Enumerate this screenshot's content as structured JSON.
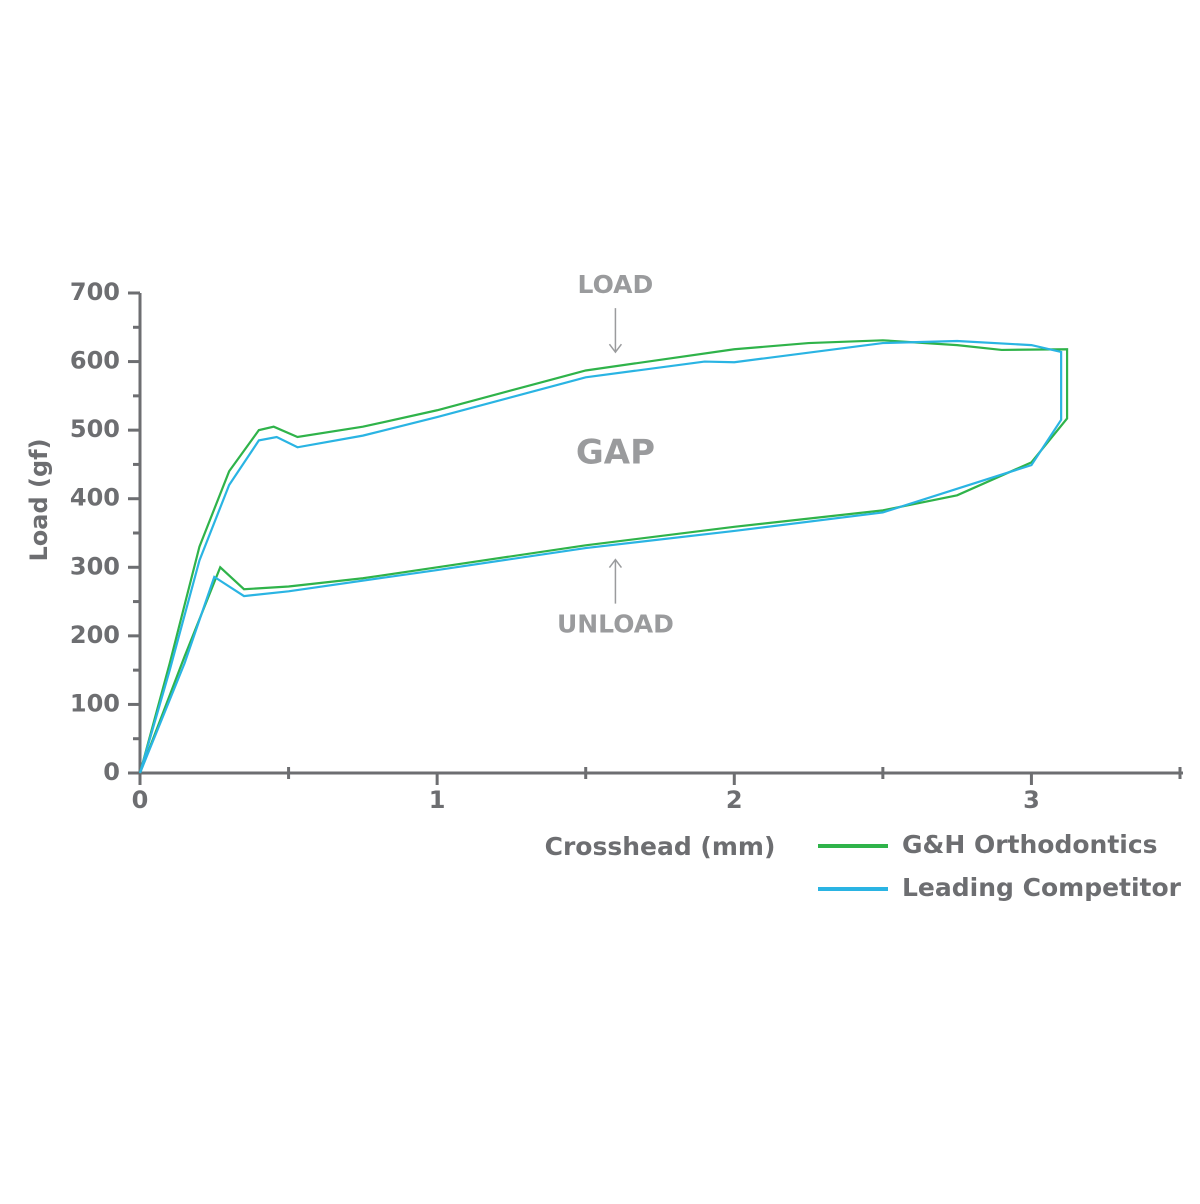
{
  "chart_data": {
    "type": "line",
    "x_label": "Crosshead (mm)",
    "y_label": "Load (gf)",
    "xlim": [
      0,
      3.5
    ],
    "ylim": [
      0,
      700
    ],
    "xticks": [
      0,
      1,
      2,
      3
    ],
    "xminor_ticks": [
      0.5,
      1.5,
      2.5,
      3.5
    ],
    "yticks": [
      0,
      100,
      200,
      300,
      400,
      500,
      600,
      700
    ],
    "yminor_ticks": [
      50,
      150,
      250,
      350,
      450,
      550,
      650
    ],
    "annotations": [
      {
        "text": "LOAD",
        "x": 1.6,
        "y": 710,
        "arrow": "down"
      },
      {
        "text": "GAP",
        "x": 1.6,
        "y": 465
      },
      {
        "text": "UNLOAD",
        "x": 1.6,
        "y": 215,
        "arrow": "up"
      }
    ],
    "series": [
      {
        "name": "G&H Orthodontics",
        "color": "#2fb34a",
        "x": [
          0,
          0.1,
          0.2,
          0.3,
          0.4,
          0.45,
          0.53,
          0.75,
          1.0,
          1.5,
          2.0,
          2.25,
          2.5,
          2.75,
          2.9,
          3.12,
          3.12,
          3.0,
          2.75,
          2.5,
          2.0,
          1.5,
          1.0,
          0.75,
          0.5,
          0.35,
          0.27,
          0.15,
          0
        ],
        "values": [
          0,
          160,
          330,
          440,
          500,
          505,
          490,
          505,
          529,
          587,
          618,
          627,
          631,
          624,
          617,
          618,
          517,
          453,
          405,
          383,
          359,
          332,
          300,
          284,
          272,
          268,
          300,
          170,
          0
        ]
      },
      {
        "name": "Leading Competitor",
        "color": "#2ab4e3",
        "x": [
          0,
          0.1,
          0.2,
          0.3,
          0.4,
          0.46,
          0.53,
          0.75,
          1.0,
          1.5,
          1.9,
          2.0,
          2.5,
          2.75,
          3.0,
          3.1,
          3.1,
          3.0,
          2.5,
          2.0,
          1.5,
          1.0,
          0.5,
          0.35,
          0.25,
          0.15,
          0
        ],
        "values": [
          0,
          150,
          310,
          420,
          485,
          490,
          475,
          492,
          519,
          577,
          600,
          599,
          627,
          630,
          624,
          614,
          515,
          449,
          380,
          353,
          328,
          296,
          265,
          258,
          286,
          160,
          0
        ]
      }
    ]
  }
}
